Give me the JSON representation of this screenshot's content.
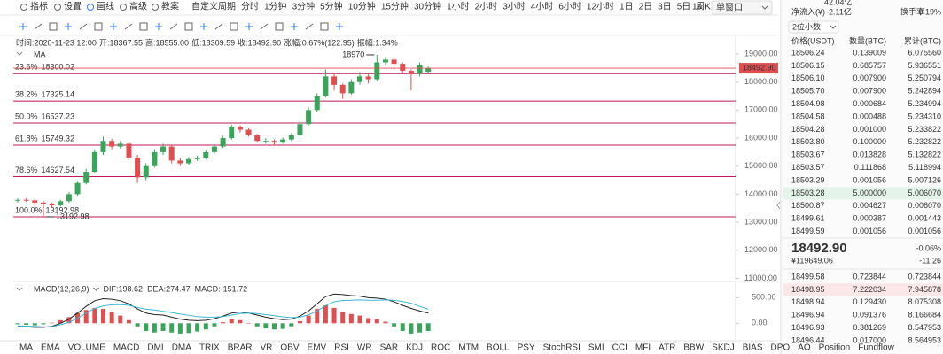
{
  "toolbar": {
    "left": [
      "指标",
      "设置",
      "画线",
      "高级",
      "教案"
    ],
    "periods": [
      "自定义周期",
      "分时",
      "1分钟",
      "3分钟",
      "5分钟",
      "10分钟",
      "15分钟",
      "30分钟",
      "1小时",
      "2小时",
      "3小时",
      "4小时",
      "6小时",
      "12小时",
      "1日",
      "2日",
      "3日",
      "5日",
      "周K",
      "月K"
    ],
    "active_period": "4小时",
    "speed": "1s",
    "window": "单窗口"
  },
  "chart_data": {
    "type": "candlestick",
    "info": [
      {
        "label": "时间:",
        "value": "2020-11-23 12:00"
      },
      {
        "label": "开:",
        "value": "18367.55"
      },
      {
        "label": "高:",
        "value": "18555.00"
      },
      {
        "label": "低:",
        "value": "18309.59"
      },
      {
        "label": "收:",
        "value": "18492.90"
      },
      {
        "label": "涨幅:",
        "value": "0.67%(122.95)"
      },
      {
        "label": "振幅:",
        "value": "1.34%"
      }
    ],
    "ma_label": "MA",
    "up_color": "#3aa55a",
    "down_color": "#e04e50",
    "candles": [
      [
        13780,
        13850,
        13700,
        13800
      ],
      [
        13800,
        13870,
        13720,
        13780
      ],
      [
        13780,
        13820,
        13600,
        13700
      ],
      [
        13700,
        13760,
        13192.98,
        13650
      ],
      [
        13650,
        13700,
        13520,
        13600
      ],
      [
        13600,
        13800,
        13560,
        13750
      ],
      [
        13750,
        14080,
        13700,
        14000
      ],
      [
        14000,
        14450,
        13950,
        14400
      ],
      [
        14400,
        14900,
        14350,
        14800
      ],
      [
        14800,
        15600,
        14750,
        15500
      ],
      [
        15500,
        16050,
        15400,
        15900
      ],
      [
        15900,
        15980,
        15600,
        15700
      ],
      [
        15700,
        15900,
        15620,
        15800
      ],
      [
        15800,
        15850,
        15200,
        15300
      ],
      [
        15300,
        15400,
        14400,
        14600
      ],
      [
        14600,
        15100,
        14500,
        15000
      ],
      [
        15000,
        15600,
        14950,
        15500
      ],
      [
        15500,
        15800,
        15400,
        15700
      ],
      [
        15700,
        15750,
        15100,
        15200
      ],
      [
        15200,
        15300,
        15000,
        15100
      ],
      [
        15100,
        15320,
        15050,
        15250
      ],
      [
        15250,
        15380,
        15180,
        15300
      ],
      [
        15300,
        15560,
        15250,
        15500
      ],
      [
        15500,
        15780,
        15450,
        15700
      ],
      [
        15700,
        16080,
        15650,
        16000
      ],
      [
        16000,
        16480,
        15950,
        16400
      ],
      [
        16400,
        16450,
        16200,
        16300
      ],
      [
        16300,
        16350,
        16050,
        16100
      ],
      [
        16100,
        16150,
        15850,
        15900
      ],
      [
        15900,
        16000,
        15800,
        15900
      ],
      [
        15900,
        15950,
        15750,
        15850
      ],
      [
        15850,
        16020,
        15800,
        15950
      ],
      [
        15950,
        16180,
        15900,
        16100
      ],
      [
        16100,
        16600,
        16050,
        16500
      ],
      [
        16500,
        17100,
        16450,
        17000
      ],
      [
        17000,
        17600,
        16950,
        17500
      ],
      [
        17500,
        18450,
        17450,
        18200
      ],
      [
        18200,
        18300,
        17700,
        17900
      ],
      [
        17900,
        17950,
        17400,
        17600
      ],
      [
        17600,
        18100,
        17550,
        18000
      ],
      [
        18000,
        18350,
        17900,
        18200
      ],
      [
        18200,
        18300,
        17950,
        18100
      ],
      [
        18100,
        18970,
        18050,
        18700
      ],
      [
        18700,
        18900,
        18600,
        18800
      ],
      [
        18800,
        18850,
        18550,
        18650
      ],
      [
        18650,
        18700,
        18300,
        18400
      ],
      [
        18400,
        18450,
        17700,
        18300
      ],
      [
        18300,
        18700,
        18200,
        18600
      ],
      [
        18367.55,
        18555,
        18309.59,
        18492.9
      ]
    ],
    "ylim": [
      10950,
      19190
    ],
    "yticks": [
      {
        "value": 19000,
        "label": "19000.00"
      },
      {
        "value": 18000,
        "label": "18000.00"
      },
      {
        "value": 17000,
        "label": "17000.00"
      },
      {
        "value": 16000,
        "label": "16000.00"
      },
      {
        "value": 15000,
        "label": "15000.00"
      },
      {
        "value": 14000,
        "label": "14000.00"
      },
      {
        "value": 13000,
        "label": "13000.00"
      },
      {
        "value": 12000,
        "label": "12000.00"
      },
      {
        "value": 11000,
        "label": "11000.00"
      }
    ],
    "fib_color": "#c2185b",
    "fib": [
      {
        "ratio": "23.6%",
        "value": 18300.02
      },
      {
        "ratio": "38.2%",
        "value": 17325.14
      },
      {
        "ratio": "50.0%",
        "value": 16537.23
      },
      {
        "ratio": "61.8%",
        "value": 15749.32
      },
      {
        "ratio": "78.6%",
        "value": 14627.54
      },
      {
        "ratio": "100.0%",
        "value": 13192.98
      }
    ],
    "last_price": {
      "value": 18492.9,
      "label": "18492.90"
    },
    "last_color": "#e04e50",
    "max_marker": 18970,
    "min_marker": 13192.98,
    "macd": {
      "title": "MACD(12,26,9)",
      "ylim": [
        -340,
        730
      ],
      "yticks": [
        {
          "value": 500,
          "label": "500.00"
        },
        {
          "value": 0,
          "label": "0.00"
        }
      ],
      "series": [
        {
          "name": "DIF:",
          "color": "#222222",
          "values": [
            -60,
            -70,
            -80,
            -80,
            -60,
            0,
            80,
            200,
            330,
            440,
            480,
            470,
            440,
            380,
            280,
            200,
            170,
            160,
            120,
            80,
            60,
            50,
            60,
            90,
            140,
            200,
            220,
            200,
            160,
            120,
            90,
            70,
            80,
            140,
            240,
            380,
            520,
            570,
            560,
            540,
            530,
            500,
            490,
            470,
            420,
            350,
            290,
            240,
            198.62
          ]
        },
        {
          "name": "DEA:",
          "color": "#3bb8d4",
          "values": [
            -50,
            -55,
            -60,
            -70,
            -65,
            -30,
            20,
            100,
            200,
            290,
            340,
            360,
            365,
            350,
            310,
            275,
            260,
            235,
            210,
            180,
            155,
            130,
            120,
            120,
            130,
            160,
            190,
            200,
            190,
            170,
            150,
            125,
            110,
            120,
            165,
            240,
            345,
            420,
            445,
            450,
            455,
            450,
            450,
            455,
            450,
            425,
            390,
            330,
            274.47
          ]
        },
        {
          "name": "MACD:",
          "color": "#c2185b",
          "up_color": "#e04e50",
          "down_color": "#3aa55a",
          "values": [
            -20,
            -30,
            -40,
            -20,
            10,
            60,
            120,
            200,
            260,
            300,
            280,
            220,
            150,
            60,
            -60,
            -150,
            -180,
            -150,
            -180,
            -200,
            -190,
            -160,
            -120,
            -60,
            20,
            80,
            60,
            0,
            -60,
            -100,
            -120,
            -110,
            -60,
            40,
            150,
            280,
            350,
            300,
            230,
            180,
            150,
            100,
            80,
            30,
            -60,
            -150,
            -200,
            -180,
            -151.72
          ]
        }
      ]
    }
  },
  "indicators": [
    "MA",
    "EMA",
    "VOLUME",
    "MACD",
    "DMI",
    "DMA",
    "TRIX",
    "BRAR",
    "VR",
    "OBV",
    "EMV",
    "RSI",
    "WR",
    "SAR",
    "KDJ",
    "ROC",
    "MTM",
    "BOLL",
    "PSY",
    "StochRSI",
    "SMI",
    "CCI",
    "MFI",
    "ATR",
    "BBW",
    "SKDJ",
    "BIAS",
    "DPO",
    "AO",
    "Position",
    "Fundflow"
  ],
  "active_indicator": "MACD",
  "disabled_indicator": "RSI",
  "orderbook": {
    "volume": "42.04亿",
    "stats": [
      {
        "label": "净流入(¥)",
        "value": "-2.11亿"
      },
      {
        "label": "换手率",
        "value": "0.19%"
      }
    ],
    "precision": "2位小数",
    "headers": [
      "价格(USDT)",
      "数量(BTC)",
      "累计(BTC)"
    ],
    "asks": [
      [
        "18506.24",
        "0.139009",
        "6.075560"
      ],
      [
        "18506.15",
        "0.685757",
        "5.936551"
      ],
      [
        "18506.10",
        "0.007900",
        "5.250794"
      ],
      [
        "18505.70",
        "0.007900",
        "5.242894"
      ],
      [
        "18504.98",
        "0.000684",
        "5.234994"
      ],
      [
        "18504.58",
        "0.000488",
        "5.234310"
      ],
      [
        "18504.28",
        "0.001000",
        "5.233822"
      ],
      [
        "18503.80",
        "0.100000",
        "5.232822"
      ],
      [
        "18503.67",
        "0.013828",
        "5.132822"
      ],
      [
        "18503.57",
        "0.111868",
        "5.118994"
      ],
      [
        "18503.29",
        "0.001056",
        "5.007126"
      ],
      [
        "18503.28",
        "5.000000",
        "5.006070"
      ],
      [
        "18500.87",
        "0.004627",
        "0.006070"
      ],
      [
        "18499.61",
        "0.000387",
        "0.001443"
      ],
      [
        "18499.59",
        "0.001056",
        "0.001056"
      ]
    ],
    "last": {
      "price": "18492.90",
      "change": "-0.06%",
      "cny": "¥119649.06",
      "cny_change": "-11.26"
    },
    "bids": [
      [
        "18499.58",
        "0.723844",
        "0.723844"
      ],
      [
        "18498.95",
        "7.222034",
        "7.945878"
      ],
      [
        "18498.94",
        "0.129430",
        "8.075308"
      ],
      [
        "18496.94",
        "0.091376",
        "8.166684"
      ],
      [
        "18496.93",
        "0.381269",
        "8.547953"
      ],
      [
        "18496.44",
        "0.017000",
        "8.564953"
      ]
    ]
  }
}
